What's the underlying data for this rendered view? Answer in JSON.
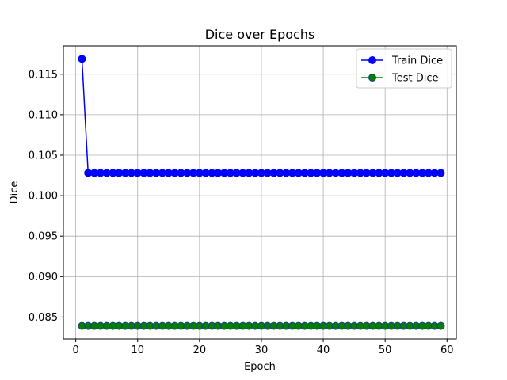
{
  "chart_data": {
    "type": "line",
    "title": "Dice over Epochs",
    "xlabel": "Epoch",
    "ylabel": "Dice",
    "xlim": [
      -2,
      61.5
    ],
    "ylim": [
      0.0823,
      0.1185
    ],
    "xticks": [
      0,
      10,
      20,
      30,
      40,
      50,
      60
    ],
    "yticks": [
      0.085,
      0.09,
      0.095,
      0.1,
      0.105,
      0.11,
      0.115
    ],
    "grid": true,
    "legend_position": "top-right",
    "x": [
      1,
      2,
      3,
      4,
      5,
      6,
      7,
      8,
      9,
      10,
      11,
      12,
      13,
      14,
      15,
      16,
      17,
      18,
      19,
      20,
      21,
      22,
      23,
      24,
      25,
      26,
      27,
      28,
      29,
      30,
      31,
      32,
      33,
      34,
      35,
      36,
      37,
      38,
      39,
      40,
      41,
      42,
      43,
      44,
      45,
      46,
      47,
      48,
      49,
      50,
      51,
      52,
      53,
      54,
      55,
      56,
      57,
      58,
      59
    ],
    "series": [
      {
        "name": "Train Dice",
        "color": "#0000ff",
        "marker_edge": "#0000ff",
        "values": [
          0.1169,
          0.1028,
          0.1028,
          0.1028,
          0.1028,
          0.1028,
          0.1028,
          0.1028,
          0.1028,
          0.1028,
          0.1028,
          0.1028,
          0.1028,
          0.1028,
          0.1028,
          0.1028,
          0.1028,
          0.1028,
          0.1028,
          0.1028,
          0.1028,
          0.1028,
          0.1028,
          0.1028,
          0.1028,
          0.1028,
          0.1028,
          0.1028,
          0.1028,
          0.1028,
          0.1028,
          0.1028,
          0.1028,
          0.1028,
          0.1028,
          0.1028,
          0.1028,
          0.1028,
          0.1028,
          0.1028,
          0.1028,
          0.1028,
          0.1028,
          0.1028,
          0.1028,
          0.1028,
          0.1028,
          0.1028,
          0.1028,
          0.1028,
          0.1028,
          0.1028,
          0.1028,
          0.1028,
          0.1028,
          0.1028,
          0.1028,
          0.1028,
          0.1028
        ]
      },
      {
        "name": "Test Dice",
        "color": "#008000",
        "marker_edge": "#1f3a8a",
        "values": [
          0.0839,
          0.0839,
          0.0839,
          0.0839,
          0.0839,
          0.0839,
          0.0839,
          0.0839,
          0.0839,
          0.0839,
          0.0839,
          0.0839,
          0.0839,
          0.0839,
          0.0839,
          0.0839,
          0.0839,
          0.0839,
          0.0839,
          0.0839,
          0.0839,
          0.0839,
          0.0839,
          0.0839,
          0.0839,
          0.0839,
          0.0839,
          0.0839,
          0.0839,
          0.0839,
          0.0839,
          0.0839,
          0.0839,
          0.0839,
          0.0839,
          0.0839,
          0.0839,
          0.0839,
          0.0839,
          0.0839,
          0.0839,
          0.0839,
          0.0839,
          0.0839,
          0.0839,
          0.0839,
          0.0839,
          0.0839,
          0.0839,
          0.0839,
          0.0839,
          0.0839,
          0.0839,
          0.0839,
          0.0839,
          0.0839,
          0.0839,
          0.0839,
          0.0839
        ]
      }
    ]
  }
}
